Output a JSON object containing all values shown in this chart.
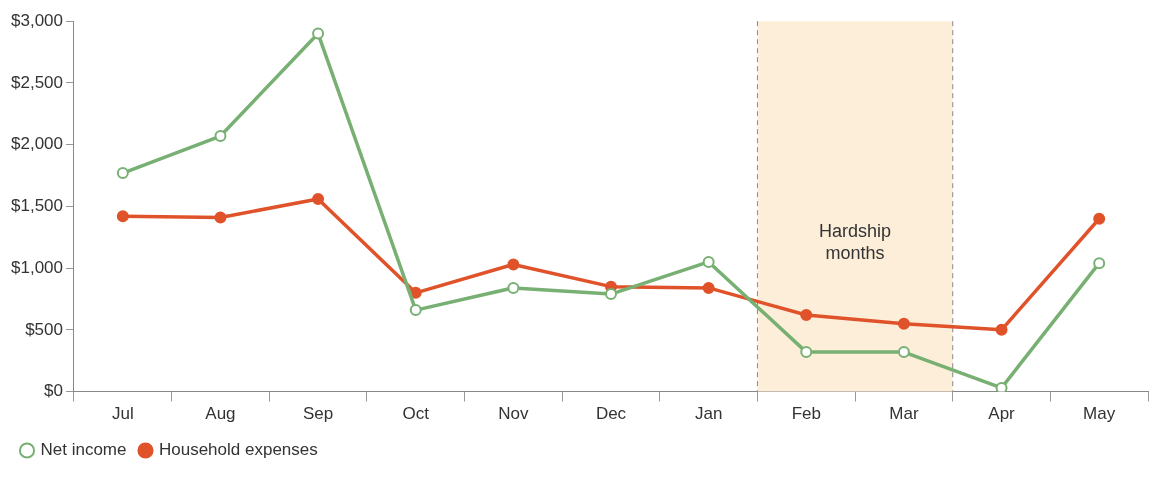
{
  "chart_data": {
    "type": "line",
    "categories": [
      "Jul",
      "Aug",
      "Sep",
      "Oct",
      "Nov",
      "Dec",
      "Jan",
      "Feb",
      "Mar",
      "Apr",
      "May"
    ],
    "series": [
      {
        "name": "Net income",
        "color": "#77b072",
        "values": [
          1770,
          2070,
          2900,
          660,
          840,
          790,
          1050,
          320,
          320,
          30,
          1040
        ]
      },
      {
        "name": "Household expenses",
        "color": "#e0532a",
        "values": [
          1420,
          1410,
          1560,
          800,
          1030,
          850,
          840,
          620,
          550,
          500,
          1400
        ]
      }
    ],
    "ylim": [
      0,
      3000
    ],
    "yticks": [
      {
        "value": 0,
        "label": "$0"
      },
      {
        "value": 500,
        "label": "$500"
      },
      {
        "value": 1000,
        "label": "$1,000"
      },
      {
        "value": 1500,
        "label": "$1,500"
      },
      {
        "value": 2000,
        "label": "$2,000"
      },
      {
        "value": 2500,
        "label": "$2,500"
      },
      {
        "value": 3000,
        "label": "$3,000"
      }
    ],
    "bands": [
      {
        "axis": "x",
        "from": "Feb",
        "to": "Mar",
        "label": "Hardship months",
        "color": "#fdeed9"
      }
    ],
    "grid": false,
    "legend": "bottom left",
    "marker": "circle",
    "line_style": "solid"
  }
}
